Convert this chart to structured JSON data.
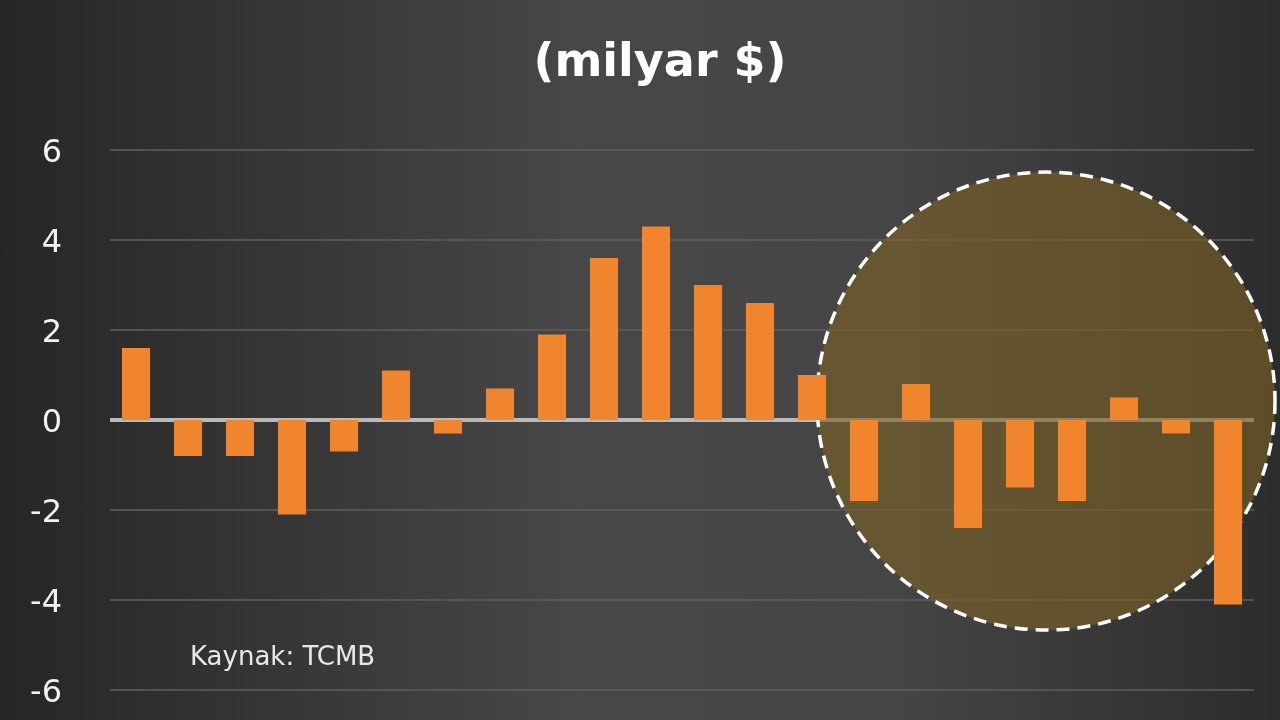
{
  "chart_data": {
    "type": "bar",
    "title": "(milyar $)",
    "categories": [
      null,
      null,
      null,
      null,
      null,
      null,
      null,
      null,
      null,
      null,
      null,
      null,
      null,
      null,
      null,
      null,
      null,
      null,
      null,
      null,
      null,
      null
    ],
    "values": [
      1.6,
      -0.8,
      -0.8,
      -2.1,
      -0.7,
      1.1,
      -0.3,
      0.7,
      1.9,
      3.6,
      4.3,
      3.0,
      2.6,
      1.0,
      -1.8,
      0.8,
      -2.4,
      -1.5,
      -1.8,
      0.5,
      -0.3,
      -4.1
    ],
    "color": "#f0852d",
    "ylim": [
      -6,
      6
    ],
    "yticks": [
      -6,
      -4,
      -2,
      0,
      2,
      4,
      6
    ],
    "grid": "y",
    "tick_labels": "y",
    "annotations": [
      "Kaynak: TCMB"
    ]
  }
}
